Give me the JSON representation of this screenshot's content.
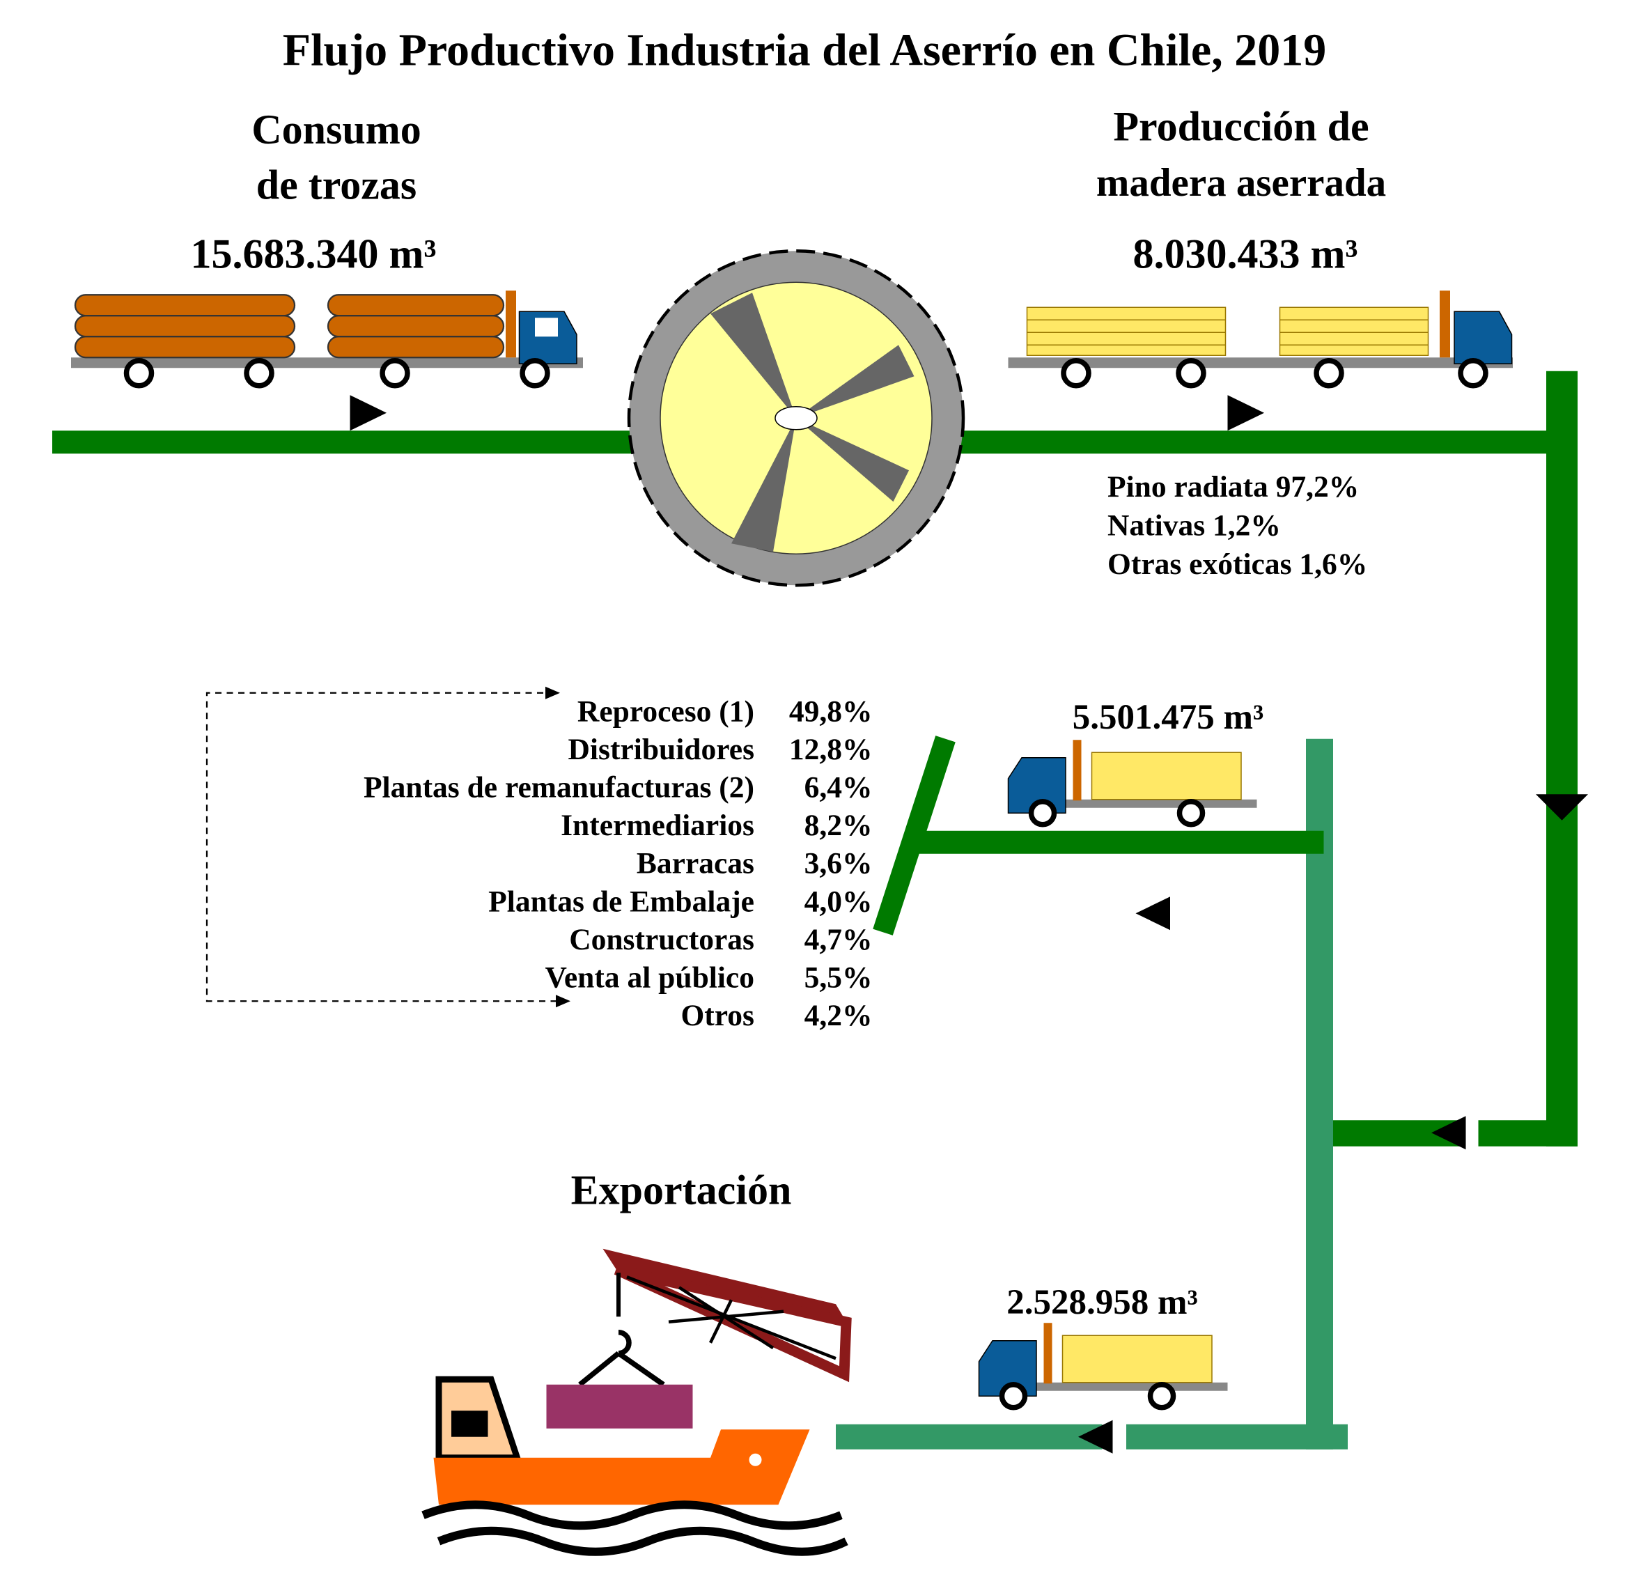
{
  "title": "Flujo Productivo Industria del Aserrío en Chile, 2019",
  "input": {
    "label_lines": [
      "Consumo",
      "de trozas"
    ],
    "volume": "15.683.340 m³"
  },
  "production": {
    "label_lines": [
      "Producción de",
      "madera aserrada"
    ],
    "volume": "8.030.433 m³",
    "species": [
      "Pino radiata 97,2%",
      "Nativas 1,2%",
      "Otras exóticas 1,6%"
    ]
  },
  "domestic": {
    "volume": "5.501.475 m³",
    "destinations": [
      {
        "name": "Reproceso (1)",
        "share": "49,8%"
      },
      {
        "name": "Distribuidores",
        "share": "12,8%"
      },
      {
        "name": "Plantas de remanufacturas (2)",
        "share": "6,4%"
      },
      {
        "name": "Intermediarios",
        "share": "8,2%"
      },
      {
        "name": "Barracas",
        "share": "3,6%"
      },
      {
        "name": "Plantas de Embalaje",
        "share": "4,0%"
      },
      {
        "name": "Constructoras",
        "share": "4,7%"
      },
      {
        "name": "Venta al público",
        "share": "5,5%"
      },
      {
        "name": "Otros",
        "share": "4,2%"
      }
    ]
  },
  "export": {
    "label": "Exportación",
    "volume": "2.528.958 m³"
  }
}
